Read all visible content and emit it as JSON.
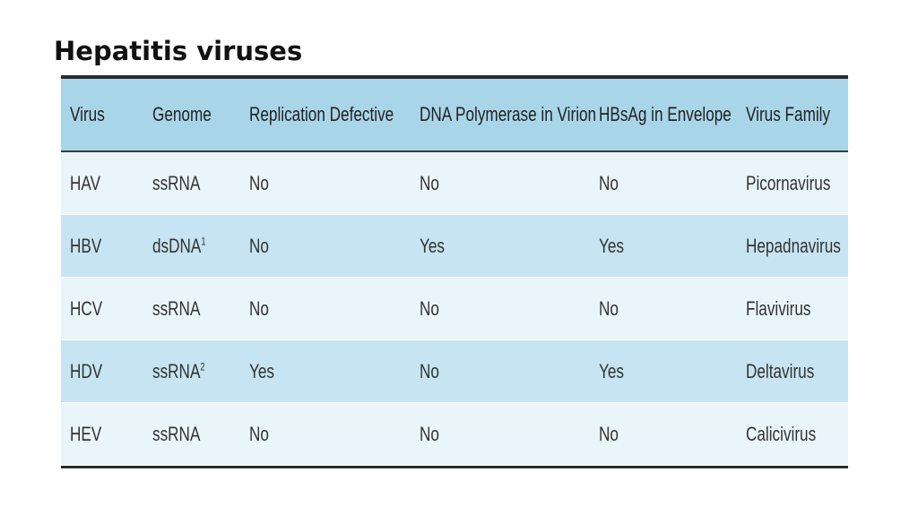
{
  "header": {
    "title": "Hepatitis viruses"
  },
  "table": {
    "columns": [
      "Virus",
      "Genome",
      "Replication Defective",
      "DNA Polymerase in Virion",
      "HBsAg in Envelope",
      "Virus Family"
    ],
    "rows": [
      [
        "HAV",
        "ssRNA",
        "No",
        "No",
        "No",
        "Picornavirus"
      ],
      [
        "HBV",
        {
          "text": "dsDNA",
          "sup": "1"
        },
        "No",
        "Yes",
        "Yes",
        "Hepadnavirus"
      ],
      [
        "HCV",
        "ssRNA",
        "No",
        "No",
        "No",
        "Flavivirus"
      ],
      [
        "HDV",
        {
          "text": "ssRNA",
          "sup": "2"
        },
        "Yes",
        "No",
        "Yes",
        "Deltavirus"
      ],
      [
        "HEV",
        "ssRNA",
        "No",
        "No",
        "No",
        "Calicivirus"
      ]
    ]
  }
}
